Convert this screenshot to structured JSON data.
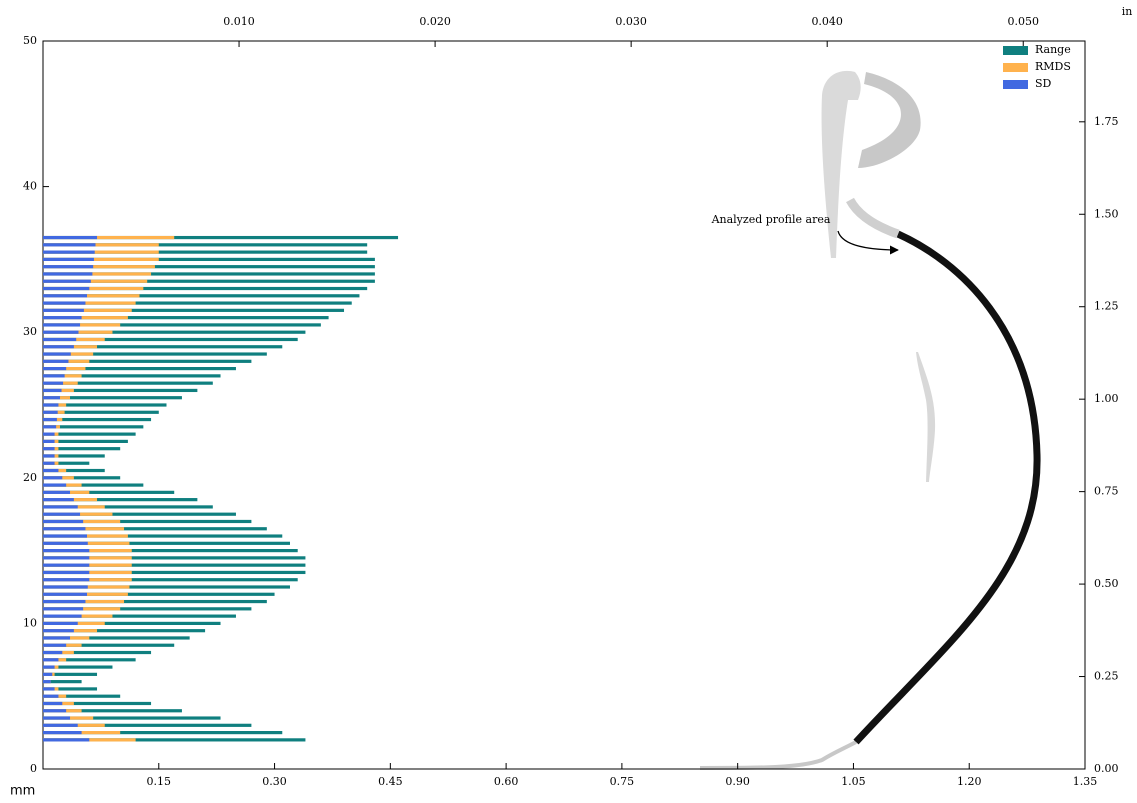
{
  "chart_data": {
    "type": "hbar_overlay",
    "annotation": "Analyzed profile area",
    "xlabel": "mm",
    "x2label": "in",
    "xlim": [
      0,
      1.35
    ],
    "xticks": [
      0.15,
      {
        "value": 0.3,
        "label": "0.30"
      },
      0.45,
      {
        "value": 0.6,
        "label": "0.60"
      },
      0.75,
      {
        "value": 0.9,
        "label": "0.90"
      },
      1.05,
      {
        "value": 1.2,
        "label": "1.20"
      },
      1.35
    ],
    "x2lim": [
      0,
      0.05315
    ],
    "x2ticks": [
      {
        "value": 0.01,
        "label": "0.010"
      },
      {
        "value": 0.02,
        "label": "0.020"
      },
      {
        "value": 0.03,
        "label": "0.030"
      },
      {
        "value": 0.04,
        "label": "0.040"
      },
      {
        "value": 0.05,
        "label": "0.050"
      }
    ],
    "ylim": [
      0,
      50
    ],
    "yticks": [
      0,
      10,
      20,
      30,
      40,
      50
    ],
    "y2lim": [
      0,
      1.9685
    ],
    "y2ticks": [
      {
        "value": 0,
        "label": "0.00"
      },
      0.25,
      {
        "value": 0.5,
        "label": "0.50"
      },
      0.75,
      {
        "value": 1,
        "label": "1.00"
      },
      1.25,
      {
        "value": 1.5,
        "label": "1.50"
      },
      1.75
    ],
    "legend": "upper right",
    "y": [
      2,
      2.5,
      3,
      3.5,
      4,
      4.5,
      5,
      5.5,
      6,
      6.5,
      7,
      7.5,
      8,
      8.5,
      9,
      9.5,
      10,
      10.5,
      11,
      11.5,
      12,
      12.5,
      13,
      13.5,
      14,
      14.5,
      15,
      15.5,
      16,
      16.5,
      17,
      17.5,
      18,
      18.5,
      19,
      19.5,
      20,
      20.5,
      21,
      21.5,
      22,
      22.5,
      23,
      23.5,
      24,
      24.5,
      25,
      25.5,
      26,
      26.5,
      27,
      27.5,
      28,
      28.5,
      29,
      29.5,
      30,
      30.5,
      31,
      31.5,
      32,
      32.5,
      33,
      33.5,
      34,
      34.5,
      35,
      35.5,
      36,
      36.5
    ],
    "series": [
      {
        "name": "Range",
        "color": "#0f7f7f",
        "values": [
          0.34,
          0.31,
          0.27,
          0.23,
          0.18,
          0.14,
          0.1,
          0.07,
          0.05,
          0.07,
          0.09,
          0.12,
          0.14,
          0.17,
          0.19,
          0.21,
          0.23,
          0.25,
          0.27,
          0.29,
          0.3,
          0.32,
          0.33,
          0.34,
          0.34,
          0.34,
          0.33,
          0.32,
          0.31,
          0.29,
          0.27,
          0.25,
          0.22,
          0.2,
          0.17,
          0.13,
          0.1,
          0.08,
          0.06,
          0.08,
          0.1,
          0.11,
          0.12,
          0.13,
          0.14,
          0.15,
          0.16,
          0.18,
          0.2,
          0.22,
          0.23,
          0.25,
          0.27,
          0.29,
          0.31,
          0.33,
          0.34,
          0.36,
          0.37,
          0.39,
          0.4,
          0.41,
          0.42,
          0.43,
          0.43,
          0.43,
          0.43,
          0.42,
          0.42,
          0.46
        ]
      },
      {
        "name": "RMDS",
        "color": "#ffb24d",
        "values": [
          0.12,
          0.1,
          0.08,
          0.065,
          0.05,
          0.04,
          0.03,
          0.02,
          0.01,
          0.015,
          0.02,
          0.03,
          0.04,
          0.05,
          0.06,
          0.07,
          0.08,
          0.09,
          0.1,
          0.105,
          0.11,
          0.112,
          0.115,
          0.115,
          0.115,
          0.115,
          0.115,
          0.112,
          0.11,
          0.105,
          0.1,
          0.09,
          0.08,
          0.07,
          0.06,
          0.05,
          0.04,
          0.03,
          0.02,
          0.02,
          0.02,
          0.02,
          0.02,
          0.022,
          0.025,
          0.028,
          0.03,
          0.035,
          0.04,
          0.045,
          0.05,
          0.055,
          0.06,
          0.065,
          0.07,
          0.08,
          0.09,
          0.1,
          0.11,
          0.115,
          0.12,
          0.125,
          0.13,
          0.135,
          0.14,
          0.145,
          0.15,
          0.15,
          0.15,
          0.17
        ]
      },
      {
        "name": "SD",
        "color": "#4169e1",
        "values": [
          0.06,
          0.05,
          0.045,
          0.035,
          0.03,
          0.025,
          0.02,
          0.015,
          0.01,
          0.012,
          0.015,
          0.02,
          0.025,
          0.03,
          0.035,
          0.04,
          0.045,
          0.05,
          0.052,
          0.055,
          0.057,
          0.058,
          0.06,
          0.06,
          0.06,
          0.06,
          0.06,
          0.058,
          0.057,
          0.055,
          0.052,
          0.048,
          0.045,
          0.04,
          0.035,
          0.03,
          0.025,
          0.02,
          0.015,
          0.015,
          0.015,
          0.015,
          0.015,
          0.017,
          0.018,
          0.019,
          0.02,
          0.022,
          0.024,
          0.026,
          0.028,
          0.03,
          0.033,
          0.036,
          0.04,
          0.043,
          0.046,
          0.048,
          0.05,
          0.053,
          0.055,
          0.057,
          0.06,
          0.062,
          0.064,
          0.065,
          0.066,
          0.067,
          0.068,
          0.07
        ]
      }
    ]
  }
}
